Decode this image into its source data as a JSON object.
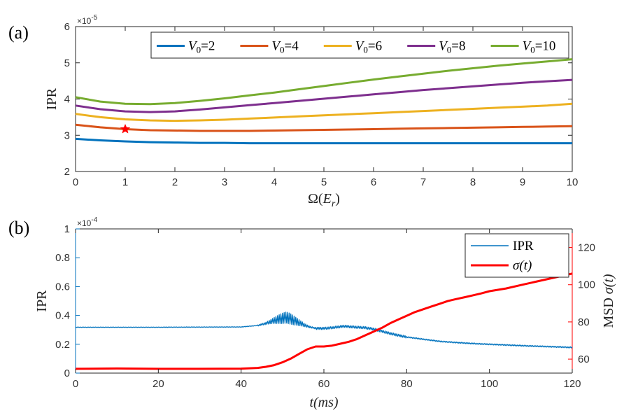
{
  "panel_a_label": "(a)",
  "panel_b_label": "(b)",
  "chart_data": [
    {
      "type": "line",
      "panel": "(a)",
      "xlabel": "Ω(E_r)",
      "xlabel_main": "Ω(",
      "xlabel_it": "E",
      "xlabel_sub": "r",
      "xlabel_close": ")",
      "ylabel": "IPR",
      "xlim": [
        0,
        10
      ],
      "ylim": [
        2,
        6
      ],
      "x_ticks": [
        0,
        1,
        2,
        3,
        4,
        5,
        6,
        7,
        8,
        9,
        10
      ],
      "y_ticks": [
        2,
        3,
        4,
        5,
        6
      ],
      "y_exponent": "×10",
      "y_exponent_power": "-5",
      "legend_position": "top",
      "x": [
        0,
        0.5,
        1,
        1.5,
        2,
        2.5,
        3,
        3.5,
        4,
        4.5,
        5,
        5.5,
        6,
        6.5,
        7,
        7.5,
        8,
        8.5,
        9,
        9.5,
        10
      ],
      "series": [
        {
          "name": "V0=2",
          "label_main": "V",
          "label_sub": "0",
          "label_rest": "=2",
          "color": "#0072BD",
          "values": [
            2.9,
            2.86,
            2.83,
            2.81,
            2.8,
            2.79,
            2.79,
            2.78,
            2.78,
            2.78,
            2.78,
            2.78,
            2.78,
            2.78,
            2.78,
            2.78,
            2.78,
            2.78,
            2.78,
            2.78,
            2.78
          ]
        },
        {
          "name": "V0=4",
          "label_main": "V",
          "label_sub": "0",
          "label_rest": "=4",
          "color": "#D95319",
          "values": [
            3.29,
            3.22,
            3.17,
            3.14,
            3.13,
            3.12,
            3.12,
            3.12,
            3.13,
            3.14,
            3.15,
            3.16,
            3.17,
            3.18,
            3.19,
            3.2,
            3.21,
            3.22,
            3.23,
            3.24,
            3.25
          ]
        },
        {
          "name": "V0=6",
          "label_main": "V",
          "label_sub": "0",
          "label_rest": "=6",
          "color": "#EDB120",
          "values": [
            3.59,
            3.5,
            3.44,
            3.41,
            3.4,
            3.41,
            3.43,
            3.46,
            3.49,
            3.52,
            3.55,
            3.58,
            3.61,
            3.64,
            3.67,
            3.7,
            3.73,
            3.76,
            3.79,
            3.82,
            3.87
          ]
        },
        {
          "name": "V0=8",
          "label_main": "V",
          "label_sub": "0",
          "label_rest": "=8",
          "color": "#7E2F8E",
          "values": [
            3.82,
            3.72,
            3.66,
            3.64,
            3.66,
            3.71,
            3.77,
            3.83,
            3.89,
            3.95,
            4.01,
            4.07,
            4.13,
            4.19,
            4.25,
            4.3,
            4.35,
            4.4,
            4.45,
            4.49,
            4.53
          ]
        },
        {
          "name": "V0=10",
          "label_main": "V",
          "label_sub": "0",
          "label_rest": "=10",
          "color": "#77AC30",
          "values": [
            4.05,
            3.93,
            3.87,
            3.86,
            3.89,
            3.95,
            4.02,
            4.1,
            4.18,
            4.27,
            4.36,
            4.45,
            4.54,
            4.62,
            4.7,
            4.78,
            4.85,
            4.92,
            4.98,
            5.04,
            5.1
          ]
        }
      ],
      "marker": {
        "x": 1,
        "y": 3.17,
        "symbol": "star",
        "color": "#FF0000"
      }
    },
    {
      "type": "line",
      "panel": "(b)",
      "xlabel": "t(ms)",
      "xlabel_it": "t(ms)",
      "ylabel_left": "IPR",
      "ylabel_right": "MSD σ(t)",
      "ylabel_right_main": "MSD ",
      "ylabel_right_it": "σ(t)",
      "xlim": [
        0,
        120
      ],
      "ylim_left": [
        0,
        1
      ],
      "ylim_right": [
        52.5,
        130
      ],
      "x_ticks": [
        0,
        20,
        40,
        60,
        80,
        100,
        120
      ],
      "y_ticks_left": [
        0,
        0.2,
        0.4,
        0.6,
        0.8,
        1
      ],
      "y_tick_labels_left": [
        "0",
        "0.2",
        "0.4",
        "0.6",
        "0.8",
        "1"
      ],
      "y_ticks_right": [
        60,
        80,
        100,
        120
      ],
      "y_exponent_left": "×10",
      "y_exponent_left_power": "-4",
      "legend_position": "top-right",
      "left_color": "#0072BD",
      "right_color": "#FF0000",
      "series": [
        {
          "name": "IPR",
          "label_main": "IPR",
          "label_it": "",
          "axis": "left",
          "color": "#0072BD",
          "oscillating": true,
          "x": [
            0,
            10,
            20,
            30,
            40,
            44,
            46,
            48,
            50,
            51,
            52,
            54,
            56,
            58,
            60,
            62,
            64,
            65,
            66,
            68,
            70,
            72,
            74,
            76,
            78,
            80,
            84,
            88,
            92,
            96,
            100,
            104,
            108,
            112,
            116,
            120
          ],
          "values": [
            0.318,
            0.318,
            0.318,
            0.319,
            0.32,
            0.33,
            0.345,
            0.365,
            0.38,
            0.385,
            0.375,
            0.35,
            0.325,
            0.31,
            0.31,
            0.315,
            0.322,
            0.325,
            0.322,
            0.318,
            0.315,
            0.305,
            0.29,
            0.275,
            0.262,
            0.25,
            0.235,
            0.22,
            0.212,
            0.205,
            0.2,
            0.195,
            0.19,
            0.186,
            0.182,
            0.178
          ]
        },
        {
          "name": "σ(t)",
          "label_main": "",
          "label_it": "σ(t)",
          "axis": "right",
          "color": "#FF0000",
          "oscillating": false,
          "x": [
            0,
            10,
            20,
            30,
            40,
            44,
            46,
            48,
            50,
            52,
            54,
            56,
            58,
            60,
            62,
            64,
            66,
            68,
            70,
            72,
            74,
            76,
            78,
            80,
            82,
            84,
            86,
            88,
            90,
            92,
            94,
            96,
            98,
            100,
            104,
            108,
            112,
            116,
            120
          ],
          "values": [
            54.8,
            55.0,
            54.8,
            54.8,
            54.9,
            55.3,
            55.9,
            56.8,
            58.3,
            60.3,
            62.8,
            65.3,
            66.8,
            66.8,
            67.3,
            68.3,
            69.3,
            70.8,
            72.8,
            74.8,
            76.8,
            79.3,
            81.3,
            83.3,
            85.3,
            86.8,
            88.3,
            89.8,
            91.3,
            92.3,
            93.3,
            94.3,
            95.3,
            96.5,
            98.0,
            100.0,
            102.0,
            104.0,
            106.0
          ]
        }
      ]
    }
  ]
}
